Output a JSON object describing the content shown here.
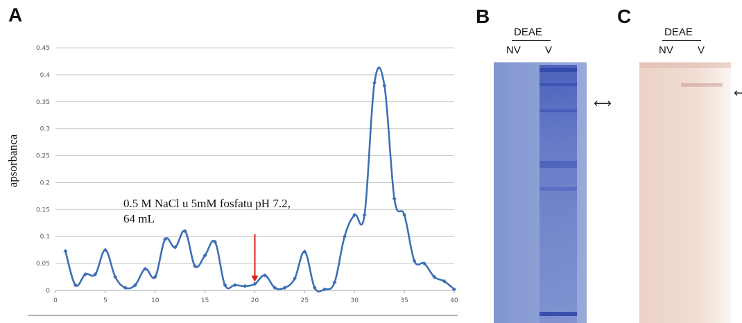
{
  "figure": {
    "panel_a_letter": "A",
    "panel_b_letter": "B",
    "panel_c_letter": "C"
  },
  "chart_data": {
    "type": "line",
    "title": "",
    "xlabel": "",
    "ylabel": "apsorbanca",
    "xlim": [
      0,
      40
    ],
    "ylim": [
      0,
      0.45
    ],
    "x_ticks": [
      "0",
      "5",
      "10",
      "15",
      "20",
      "25",
      "30",
      "35",
      "40"
    ],
    "y_ticks": [
      "0",
      "0.05",
      "0.1",
      "0.15",
      "0.2",
      "0.25",
      "0.3",
      "0.35",
      "0.4",
      "0.45"
    ],
    "grid": "horizontal",
    "line_color": "#3d6fb5",
    "annotation_color": "#e0201b",
    "series": [
      {
        "x": [
          1,
          2,
          3,
          4,
          5,
          6,
          7,
          8,
          9,
          10,
          11,
          12,
          13,
          14,
          15,
          16,
          17,
          18,
          19,
          20,
          21,
          22,
          23,
          24,
          25,
          26,
          27,
          28,
          29,
          30,
          31,
          32,
          33,
          34,
          35,
          36,
          37,
          38,
          39,
          40
        ],
        "y": [
          0.073,
          0.01,
          0.03,
          0.03,
          0.075,
          0.025,
          0.005,
          0.01,
          0.04,
          0.025,
          0.095,
          0.08,
          0.11,
          0.045,
          0.065,
          0.09,
          0.01,
          0.01,
          0.008,
          0.012,
          0.028,
          0.005,
          0.005,
          0.022,
          0.072,
          0.005,
          0.002,
          0.015,
          0.1,
          0.14,
          0.14,
          0.385,
          0.38,
          0.17,
          0.14,
          0.055,
          0.05,
          0.025,
          0.017,
          0.002
        ]
      }
    ],
    "annotation": {
      "text_line1": "0.5 M NaCl u 5mM fosfatu pH 7.2,",
      "text_line2": "64 mL",
      "arrow_x": 20,
      "arrow_y": 0.012
    }
  },
  "gel_b": {
    "header": "DEAE",
    "lane1": "NV",
    "lane2": "V",
    "background_color": "#8a9fd2",
    "band_color": "#3c53b8"
  },
  "gel_c": {
    "header": "DEAE",
    "lane1": "NV",
    "lane2": "V",
    "background_color": "#eed9cf",
    "band_color": "#c48c80"
  }
}
